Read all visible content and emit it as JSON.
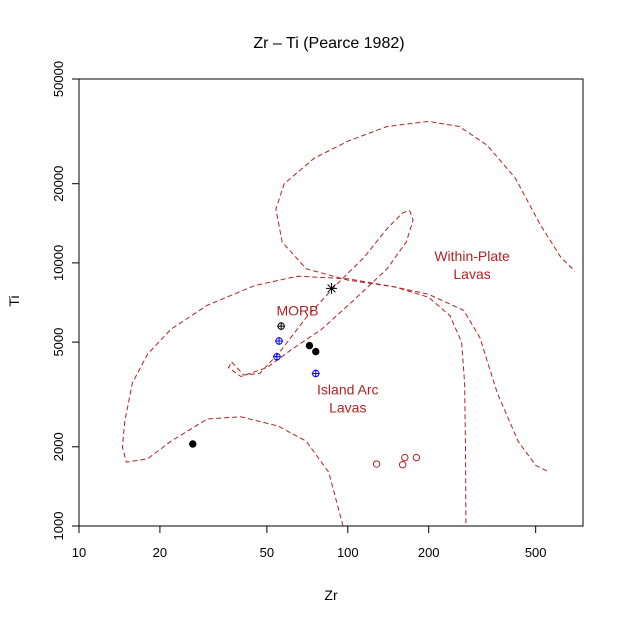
{
  "chart_data": {
    "type": "scatter",
    "title": "Zr – Ti (Pearce 1982)",
    "xlabel": "Zr",
    "ylabel": "Ti",
    "x_scale": "log",
    "y_scale": "log",
    "xlim": [
      10,
      750
    ],
    "ylim": [
      1000,
      50000
    ],
    "x_ticks": [
      10,
      20,
      50,
      100,
      200,
      500
    ],
    "x_tick_labels": [
      "10",
      "20",
      "50",
      "100",
      "200",
      "500"
    ],
    "y_ticks": [
      1000,
      2000,
      5000,
      10000,
      20000,
      50000
    ],
    "y_tick_labels": [
      "1000",
      "2000",
      "5000",
      "10000",
      "20000",
      "50000"
    ],
    "grid": false,
    "field_color": "#b22222",
    "field_labels": [
      {
        "lines": [
          "MORB"
        ],
        "x": 65,
        "y": 6600
      },
      {
        "lines": [
          "Within-Plate",
          "Lavas"
        ],
        "x": 290,
        "y": 9800
      },
      {
        "lines": [
          "Island Arc",
          "Lavas"
        ],
        "x": 100,
        "y": 3050
      }
    ],
    "field_boundaries": [
      {
        "name": "MORB",
        "closed": true,
        "points": [
          [
            37,
            4200
          ],
          [
            41,
            3750
          ],
          [
            47,
            3800
          ],
          [
            56,
            4600
          ],
          [
            70,
            6200
          ],
          [
            90,
            8200
          ],
          [
            115,
            10500
          ],
          [
            140,
            13500
          ],
          [
            160,
            15500
          ],
          [
            170,
            15800
          ],
          [
            175,
            14500
          ],
          [
            165,
            12000
          ],
          [
            140,
            9500
          ],
          [
            105,
            7200
          ],
          [
            80,
            5600
          ],
          [
            62,
            4700
          ],
          [
            50,
            4000
          ],
          [
            40,
            3700
          ],
          [
            36,
            4000
          ]
        ]
      },
      {
        "name": "Island Arc Lavas",
        "closed": false,
        "points": [
          [
            96,
            1000
          ],
          [
            85,
            1600
          ],
          [
            70,
            2100
          ],
          [
            55,
            2400
          ],
          [
            40,
            2600
          ],
          [
            30,
            2550
          ],
          [
            22,
            2100
          ],
          [
            18,
            1800
          ],
          [
            15,
            1750
          ],
          [
            14.5,
            2000
          ],
          [
            14.8,
            2500
          ],
          [
            15.8,
            3500
          ],
          [
            18,
            4500
          ],
          [
            22,
            5600
          ],
          [
            30,
            6900
          ],
          [
            45,
            8200
          ],
          [
            65,
            8900
          ],
          [
            100,
            8700
          ],
          [
            150,
            8100
          ],
          [
            200,
            7400
          ],
          [
            240,
            6300
          ],
          [
            265,
            5000
          ],
          [
            272,
            3500
          ],
          [
            274,
            2000
          ],
          [
            275,
            1000
          ]
        ]
      },
      {
        "name": "Within-Plate Lavas",
        "closed": false,
        "points": [
          [
            550,
            1620
          ],
          [
            500,
            1700
          ],
          [
            430,
            2100
          ],
          [
            360,
            3200
          ],
          [
            310,
            5200
          ],
          [
            270,
            6600
          ],
          [
            200,
            7600
          ],
          [
            150,
            8100
          ],
          [
            100,
            8600
          ],
          [
            70,
            9500
          ],
          [
            57,
            12000
          ],
          [
            54,
            16000
          ],
          [
            58,
            20000
          ],
          [
            75,
            25000
          ],
          [
            100,
            29000
          ],
          [
            140,
            33000
          ],
          [
            200,
            34500
          ],
          [
            260,
            33000
          ],
          [
            330,
            28000
          ],
          [
            420,
            21000
          ],
          [
            520,
            14000
          ],
          [
            620,
            10500
          ],
          [
            700,
            9300
          ]
        ]
      }
    ],
    "series": [
      {
        "marker": "filled-circle",
        "color": "#000000",
        "points": [
          [
            26.5,
            2050
          ],
          [
            72,
            4850
          ],
          [
            76,
            4600
          ]
        ]
      },
      {
        "marker": "circle-plus",
        "color": "#000000",
        "points": [
          [
            56.5,
            5750
          ]
        ]
      },
      {
        "marker": "circle-plus",
        "color": "#0000ff",
        "points": [
          [
            55.5,
            5050
          ],
          [
            54.5,
            4400
          ],
          [
            76,
            3800
          ]
        ]
      },
      {
        "marker": "star",
        "color": "#000000",
        "points": [
          [
            87,
            8000
          ]
        ]
      },
      {
        "marker": "open-circle",
        "color": "#b22222",
        "points": [
          [
            128,
            1720
          ],
          [
            163,
            1820
          ],
          [
            180,
            1820
          ],
          [
            160,
            1710
          ]
        ]
      }
    ]
  }
}
